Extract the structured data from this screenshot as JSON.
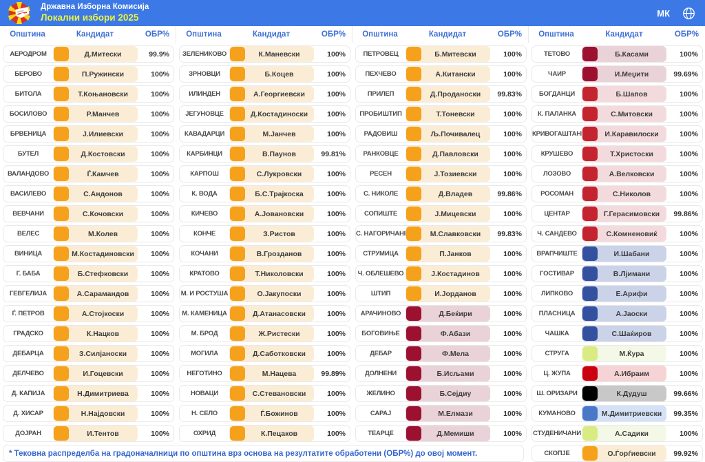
{
  "header": {
    "org": "Државна Изборна Комисија",
    "title": "Локални избори 2025",
    "lang": "МК",
    "bar_color": "#3c79e6",
    "title_color": "#eaf43f"
  },
  "table": {
    "column_headers": {
      "municipality": "Општина",
      "candidate": "Кандидат",
      "processed": "ОБР%"
    },
    "parties": {
      "orange": {
        "badge": "#F6A11B",
        "bg": "#FBEDD5"
      },
      "crimson": {
        "badge": "#9C1130",
        "bg": "#EAD2D9"
      },
      "red": {
        "badge": "#C3242F",
        "bg": "#F3DBDD"
      },
      "pure_red": {
        "badge": "#CB0110",
        "bg": "#F6D4D6"
      },
      "navy": {
        "badge": "#34519F",
        "bg": "#CBD3E9"
      },
      "blue": {
        "badge": "#4A78C8",
        "bg": "#D4E1F7"
      },
      "green": {
        "badge": "#D8EC83",
        "bg": "#F3F9E6"
      },
      "black": {
        "badge": "#000000",
        "bg": "#C8C8C8"
      }
    },
    "columns": [
      [
        {
          "m": "АЕРОДРОМ",
          "c": "Д.Митески",
          "p": "99.9%",
          "party": "orange"
        },
        {
          "m": "БЕРОВО",
          "c": "П.Ружински",
          "p": "100%",
          "party": "orange"
        },
        {
          "m": "БИТОЛА",
          "c": "Т.Коњановски",
          "p": "100%",
          "party": "orange"
        },
        {
          "m": "БОСИЛОВО",
          "c": "Р.Манчев",
          "p": "100%",
          "party": "orange"
        },
        {
          "m": "БРВЕНИЦА",
          "c": "Ј.Илиевски",
          "p": "100%",
          "party": "orange"
        },
        {
          "m": "БУТЕЛ",
          "c": "Д.Костовски",
          "p": "100%",
          "party": "orange"
        },
        {
          "m": "ВАЛАНДОВО",
          "c": "Ѓ.Камчев",
          "p": "100%",
          "party": "orange"
        },
        {
          "m": "ВАСИЛЕВО",
          "c": "С.Андонов",
          "p": "100%",
          "party": "orange"
        },
        {
          "m": "ВЕВЧАНИ",
          "c": "С.Кочовски",
          "p": "100%",
          "party": "orange"
        },
        {
          "m": "ВЕЛЕС",
          "c": "М.Колев",
          "p": "100%",
          "party": "orange"
        },
        {
          "m": "ВИНИЦА",
          "c": "М.Костадиновски",
          "p": "100%",
          "party": "orange"
        },
        {
          "m": "Г. БАБА",
          "c": "Б.Стефковски",
          "p": "100%",
          "party": "orange"
        },
        {
          "m": "ГЕВГЕЛИЈА",
          "c": "А.Сарамандов",
          "p": "100%",
          "party": "orange"
        },
        {
          "m": "Ѓ. ПЕТРОВ",
          "c": "А.Стојкоски",
          "p": "100%",
          "party": "orange"
        },
        {
          "m": "ГРАДСКО",
          "c": "К.Нацков",
          "p": "100%",
          "party": "orange"
        },
        {
          "m": "ДЕБАРЦА",
          "c": "З.Силјаноски",
          "p": "100%",
          "party": "orange"
        },
        {
          "m": "ДЕЛЧЕВО",
          "c": "И.Гоцевски",
          "p": "100%",
          "party": "orange"
        },
        {
          "m": "Д. КАПИЈА",
          "c": "Н.Димитриева",
          "p": "100%",
          "party": "orange"
        },
        {
          "m": "Д. ХИСАР",
          "c": "Н.Најдовски",
          "p": "100%",
          "party": "orange"
        },
        {
          "m": "ДОЈРАН",
          "c": "И.Тентов",
          "p": "100%",
          "party": "orange"
        }
      ],
      [
        {
          "m": "ЗЕЛЕНИКОВО",
          "c": "К.Маневски",
          "p": "100%",
          "party": "orange"
        },
        {
          "m": "ЗРНОВЦИ",
          "c": "Б.Коцев",
          "p": "100%",
          "party": "orange"
        },
        {
          "m": "ИЛИНДЕН",
          "c": "А.Георгиевски",
          "p": "100%",
          "party": "orange"
        },
        {
          "m": "ЈЕГУНОВЦЕ",
          "c": "Д.Костадиноски",
          "p": "100%",
          "party": "orange"
        },
        {
          "m": "КАВАДАРЦИ",
          "c": "М.Јанчев",
          "p": "100%",
          "party": "orange"
        },
        {
          "m": "КАРБИНЦИ",
          "c": "В.Паунов",
          "p": "99.81%",
          "party": "orange"
        },
        {
          "m": "КАРПОШ",
          "c": "С.Лукровски",
          "p": "100%",
          "party": "orange"
        },
        {
          "m": "К. ВОДА",
          "c": "Б.С.Трајкоска",
          "p": "100%",
          "party": "orange"
        },
        {
          "m": "КИЧЕВО",
          "c": "А.Јовановски",
          "p": "100%",
          "party": "orange"
        },
        {
          "m": "КОНЧЕ",
          "c": "З.Ристов",
          "p": "100%",
          "party": "orange"
        },
        {
          "m": "КОЧАНИ",
          "c": "В.Грозданов",
          "p": "100%",
          "party": "orange"
        },
        {
          "m": "КРАТОВО",
          "c": "Т.Николовски",
          "p": "100%",
          "party": "orange"
        },
        {
          "m": "М. И РОСТУША",
          "c": "О.Јакупоски",
          "p": "100%",
          "party": "orange"
        },
        {
          "m": "М. КАМЕНИЦА",
          "c": "Д.Атанасовски",
          "p": "100%",
          "party": "orange"
        },
        {
          "m": "М. БРОД",
          "c": "Ж.Ристески",
          "p": "100%",
          "party": "orange"
        },
        {
          "m": "МОГИЛА",
          "c": "Д.Саботковски",
          "p": "100%",
          "party": "orange"
        },
        {
          "m": "НЕГОТИНО",
          "c": "М.Нацева",
          "p": "99.89%",
          "party": "orange"
        },
        {
          "m": "НОВАЦИ",
          "c": "С.Стевановски",
          "p": "100%",
          "party": "orange"
        },
        {
          "m": "Н. СЕЛО",
          "c": "Ѓ.Божинов",
          "p": "100%",
          "party": "orange"
        },
        {
          "m": "ОХРИД",
          "c": "К.Пецаков",
          "p": "100%",
          "party": "orange"
        }
      ],
      [
        {
          "m": "ПЕТРОВЕЦ",
          "c": "Б.Митевски",
          "p": "100%",
          "party": "orange"
        },
        {
          "m": "ПЕХЧЕВО",
          "c": "А.Китански",
          "p": "100%",
          "party": "orange"
        },
        {
          "m": "ПРИЛЕП",
          "c": "Д.Проданоски",
          "p": "99.83%",
          "party": "orange"
        },
        {
          "m": "ПРОБИШТИП",
          "c": "Т.Тоневски",
          "p": "100%",
          "party": "orange"
        },
        {
          "m": "РАДОВИШ",
          "c": "Љ.Почивалец",
          "p": "100%",
          "party": "orange"
        },
        {
          "m": "РАНКОВЦЕ",
          "c": "Д.Павловски",
          "p": "100%",
          "party": "orange"
        },
        {
          "m": "РЕСЕН",
          "c": "Ј.Тозиевски",
          "p": "100%",
          "party": "orange"
        },
        {
          "m": "С. НИКОЛЕ",
          "c": "Д.Владев",
          "p": "99.86%",
          "party": "orange"
        },
        {
          "m": "СОПИШТЕ",
          "c": "Ј.Мицевски",
          "p": "100%",
          "party": "orange"
        },
        {
          "m": "С. НАГОРИЧАНЕ",
          "c": "М.Славковски",
          "p": "99.83%",
          "party": "orange"
        },
        {
          "m": "СТРУМИЦА",
          "c": "П.Јанков",
          "p": "100%",
          "party": "orange"
        },
        {
          "m": "Ч. ОБЛЕШЕВО",
          "c": "Ј.Костадинов",
          "p": "100%",
          "party": "orange"
        },
        {
          "m": "ШТИП",
          "c": "И.Јорданов",
          "p": "100%",
          "party": "orange"
        },
        {
          "m": "АРАЧИНОВО",
          "c": "Д.Беќири",
          "p": "100%",
          "party": "crimson"
        },
        {
          "m": "БОГОВИЊЕ",
          "c": "Ф.Абази",
          "p": "100%",
          "party": "crimson"
        },
        {
          "m": "ДЕБАР",
          "c": "Ф.Мела",
          "p": "100%",
          "party": "crimson"
        },
        {
          "m": "ДОЛНЕНИ",
          "c": "Б.Исљами",
          "p": "100%",
          "party": "crimson"
        },
        {
          "m": "ЖЕЛИНО",
          "c": "Б.Сејдиу",
          "p": "100%",
          "party": "crimson"
        },
        {
          "m": "САРАЈ",
          "c": "М.Елмази",
          "p": "100%",
          "party": "crimson"
        },
        {
          "m": "ТЕАРЦЕ",
          "c": "Д.Мемиши",
          "p": "100%",
          "party": "crimson"
        }
      ],
      [
        {
          "m": "ТЕТОВО",
          "c": "Б.Касами",
          "p": "100%",
          "party": "crimson"
        },
        {
          "m": "ЧАИР",
          "c": "И.Меџити",
          "p": "99.69%",
          "party": "crimson"
        },
        {
          "m": "БОГДАНЦИ",
          "c": "Б.Шапов",
          "p": "100%",
          "party": "red"
        },
        {
          "m": "К. ПАЛАНКА",
          "c": "С.Митовски",
          "p": "100%",
          "party": "red"
        },
        {
          "m": "КРИВОГАШТАНИ",
          "c": "И.Каравилоски",
          "p": "100%",
          "party": "red"
        },
        {
          "m": "КРУШЕВО",
          "c": "Т.Христоски",
          "p": "100%",
          "party": "red"
        },
        {
          "m": "ЛОЗОВО",
          "c": "А.Велковски",
          "p": "100%",
          "party": "red"
        },
        {
          "m": "РОСОМАН",
          "c": "С.Николов",
          "p": "100%",
          "party": "red"
        },
        {
          "m": "ЦЕНТАР",
          "c": "Г.Герасимовски",
          "p": "99.86%",
          "party": "red"
        },
        {
          "m": "Ч. САНДЕВО",
          "c": "С.Комненовиќ",
          "p": "100%",
          "party": "red"
        },
        {
          "m": "ВРАПЧИШТЕ",
          "c": "И.Шабани",
          "p": "100%",
          "party": "navy"
        },
        {
          "m": "ГОСТИВАР",
          "c": "В.Лјимани",
          "p": "100%",
          "party": "navy"
        },
        {
          "m": "ЛИПКОВО",
          "c": "Е.Арифи",
          "p": "100%",
          "party": "navy"
        },
        {
          "m": "ПЛАСНИЦА",
          "c": "А.Јаоски",
          "p": "100%",
          "party": "navy"
        },
        {
          "m": "ЧАШКА",
          "c": "С.Шаќиров",
          "p": "100%",
          "party": "navy"
        },
        {
          "m": "СТРУГА",
          "c": "М.Ќура",
          "p": "100%",
          "party": "green"
        },
        {
          "m": "Ц. ЖУПА",
          "c": "А.Ибраим",
          "p": "100%",
          "party": "pure_red"
        },
        {
          "m": "Ш. ОРИЗАРИ",
          "c": "К.Дудуш",
          "p": "99.66%",
          "party": "black"
        },
        {
          "m": "КУМАНОВО",
          "c": "М.Димитриевски",
          "p": "99.35%",
          "party": "blue"
        },
        {
          "m": "СТУДЕНИЧАНИ",
          "c": "А.Садики",
          "p": "100%",
          "party": "green"
        },
        {
          "m": "СКОПЈЕ",
          "c": "О.Ѓорѓиевски",
          "p": "99.92%",
          "party": "orange"
        }
      ]
    ]
  },
  "footer": {
    "note": "* Тековна распределба на градоначалници по општина врз основа на резултатите обработени (ОБР%) до овој момент."
  }
}
